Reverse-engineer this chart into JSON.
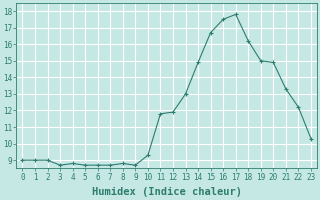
{
  "x": [
    0,
    1,
    2,
    3,
    4,
    5,
    6,
    7,
    8,
    9,
    10,
    11,
    12,
    13,
    14,
    15,
    16,
    17,
    18,
    19,
    20,
    21,
    22,
    23
  ],
  "y": [
    9.0,
    9.0,
    9.0,
    8.7,
    8.8,
    8.7,
    8.7,
    8.7,
    8.8,
    8.7,
    9.3,
    11.8,
    11.9,
    13.0,
    14.9,
    16.7,
    17.5,
    17.8,
    16.2,
    15.0,
    14.9,
    13.3,
    12.2,
    10.3
  ],
  "line_color": "#2d7d6e",
  "marker": "+",
  "marker_size": 3,
  "bg_color": "#c5e8e5",
  "grid_color": "#ffffff",
  "xlabel": "Humidex (Indice chaleur)",
  "ylim": [
    8.5,
    18.5
  ],
  "xlim": [
    -0.5,
    23.5
  ],
  "yticks": [
    9,
    10,
    11,
    12,
    13,
    14,
    15,
    16,
    17,
    18
  ],
  "xticks": [
    0,
    1,
    2,
    3,
    4,
    5,
    6,
    7,
    8,
    9,
    10,
    11,
    12,
    13,
    14,
    15,
    16,
    17,
    18,
    19,
    20,
    21,
    22,
    23
  ],
  "tick_label_fontsize": 5.5,
  "xlabel_fontsize": 7.5
}
